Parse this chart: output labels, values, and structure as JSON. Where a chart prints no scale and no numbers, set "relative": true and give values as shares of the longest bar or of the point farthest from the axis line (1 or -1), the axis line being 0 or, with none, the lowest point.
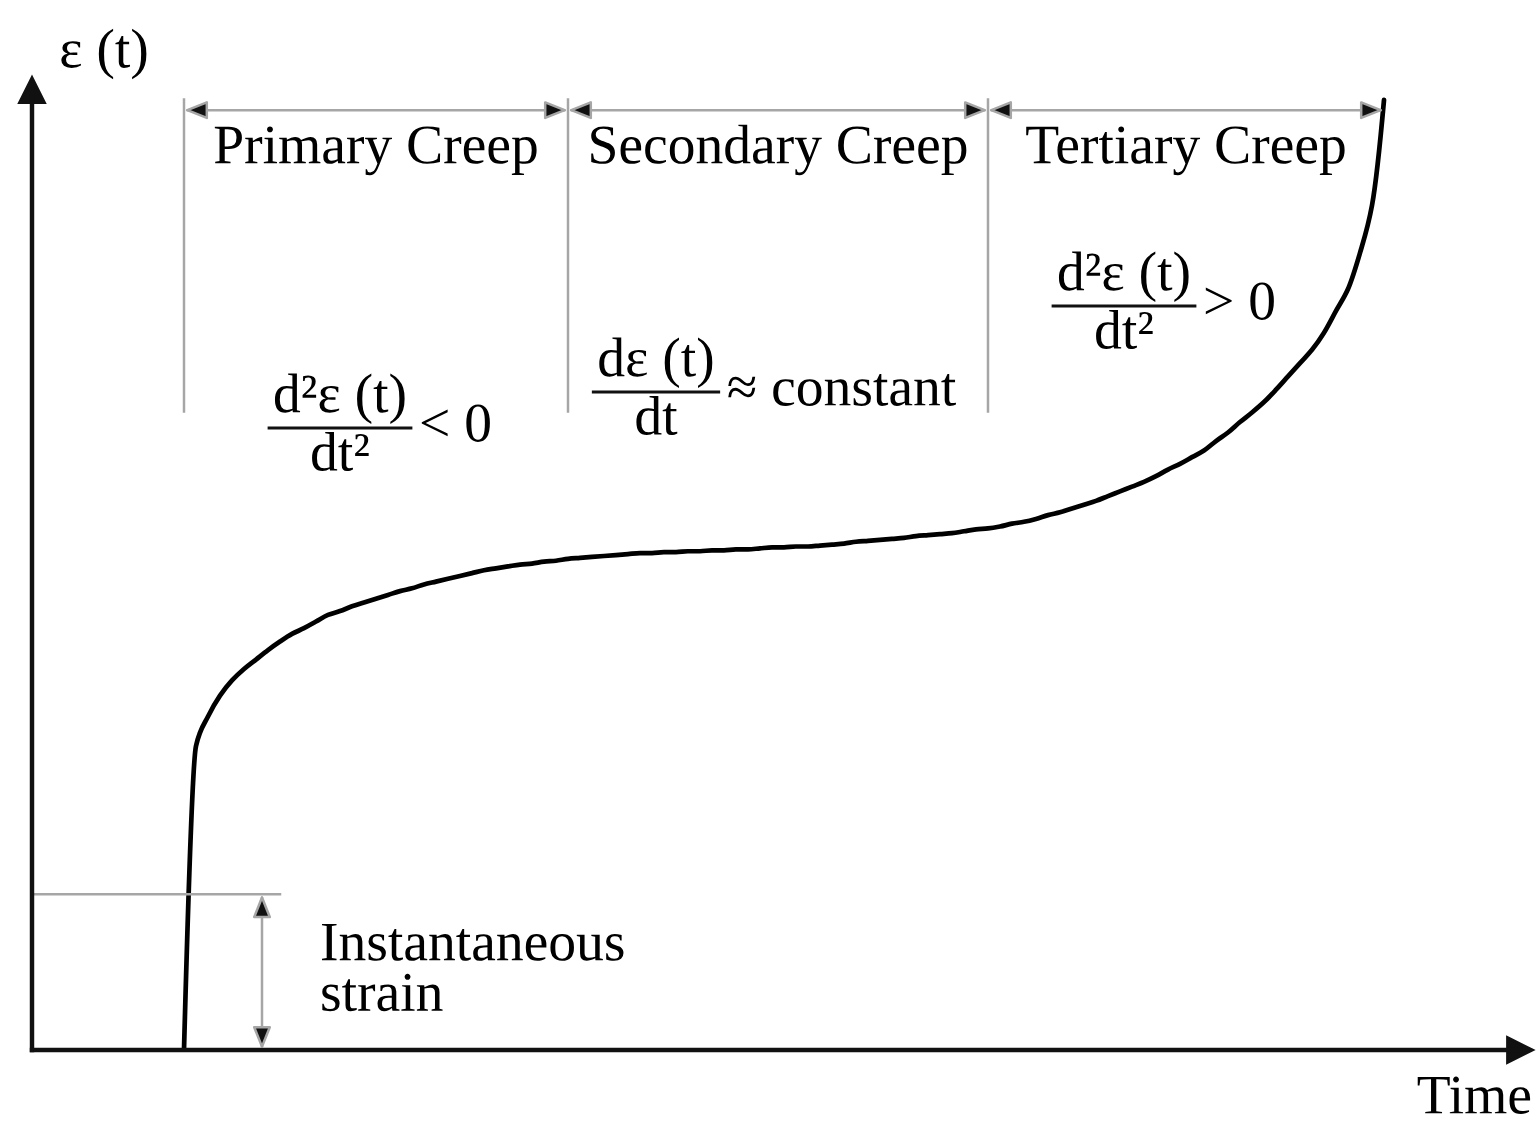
{
  "chart_data": {
    "type": "line",
    "relative": true,
    "xlabel": "Time",
    "ylabel": "ε (t)",
    "color": "#000000",
    "categories": [
      null,
      null,
      null,
      null,
      null,
      null,
      null,
      null,
      null,
      null,
      null,
      null,
      null,
      null,
      null,
      null,
      null,
      null,
      null,
      null,
      null,
      null,
      null,
      null,
      null,
      null,
      null,
      null,
      null,
      null,
      null,
      null,
      null,
      null,
      null,
      null,
      null,
      null,
      null,
      null,
      null,
      null,
      null,
      null,
      null,
      null,
      null,
      null,
      null,
      null,
      null,
      null,
      null,
      null,
      null,
      null,
      null,
      null,
      null,
      null,
      null,
      null,
      null,
      null,
      null,
      null,
      null,
      null,
      null,
      null,
      null,
      null,
      null,
      null,
      null,
      null,
      null,
      null,
      null,
      null,
      null,
      null,
      null,
      null,
      null,
      null,
      null,
      null,
      null,
      null,
      null,
      null,
      null,
      null,
      null,
      null,
      null,
      null,
      null,
      null,
      null
    ],
    "values": [
      0,
      0.32,
      0.351,
      0.373,
      0.389,
      0.401,
      0.411,
      0.421,
      0.43,
      0.438,
      0.444,
      0.451,
      0.458,
      0.462,
      0.467,
      0.471,
      0.475,
      0.479,
      0.483,
      0.486,
      0.49,
      0.493,
      0.496,
      0.499,
      0.502,
      0.505,
      0.507,
      0.509,
      0.511,
      0.512,
      0.514,
      0.515,
      0.517,
      0.518,
      0.519,
      0.52,
      0.521,
      0.522,
      0.523,
      0.523,
      0.524,
      0.524,
      0.525,
      0.525,
      0.526,
      0.526,
      0.527,
      0.527,
      0.528,
      0.529,
      0.529,
      0.53,
      0.53,
      0.531,
      0.532,
      0.533,
      0.535,
      0.536,
      0.537,
      0.538,
      0.539,
      0.541,
      0.542,
      0.543,
      0.544,
      0.546,
      0.548,
      0.549,
      0.551,
      0.554,
      0.556,
      0.559,
      0.563,
      0.566,
      0.57,
      0.574,
      0.578,
      0.583,
      0.588,
      0.593,
      0.598,
      0.604,
      0.611,
      0.617,
      0.624,
      0.631,
      0.641,
      0.65,
      0.661,
      0.671,
      0.682,
      0.695,
      0.709,
      0.723,
      0.737,
      0.755,
      0.778,
      0.801,
      0.839,
      0.889,
      1.0
    ],
    "ref_lines": [
      {
        "axis": "y",
        "value": 0.164,
        "label": "Instantaneous strain",
        "color": "#a6a6a6"
      }
    ],
    "annotations": [
      "Primary Creep",
      "Secondary Creep",
      "Tertiary Creep",
      "d²ε (t)\ndt² < 0",
      "dε (t)\ndt ≈ constant",
      "d²ε (t)\ndt² > 0"
    ]
  }
}
